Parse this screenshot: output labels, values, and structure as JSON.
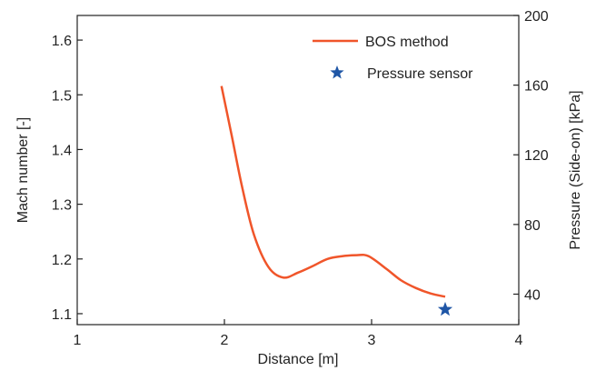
{
  "chart_data": {
    "type": "line",
    "xlabel": "Distance [m]",
    "ylabel": "Mach number [-]",
    "y2label": "Pressure (Side-on) [kPa]",
    "xlim": [
      1,
      4
    ],
    "ylim": [
      1.08,
      1.645
    ],
    "y2lim": [
      22.5,
      200
    ],
    "x_ticks": [
      1,
      2,
      3,
      4
    ],
    "y_ticks": [
      1.1,
      1.2,
      1.3,
      1.4,
      1.5,
      1.6
    ],
    "y2_ticks": [
      40,
      80,
      120,
      160,
      200
    ],
    "legend_position": "top-right",
    "grid": false,
    "series": [
      {
        "name": "BOS method",
        "kind": "line",
        "axis": "left",
        "color": "#f0552a",
        "x": [
          1.98,
          2.05,
          2.12,
          2.2,
          2.3,
          2.4,
          2.5,
          2.6,
          2.7,
          2.8,
          2.9,
          2.98,
          3.1,
          3.2,
          3.3,
          3.4,
          3.5
        ],
        "y": [
          1.516,
          1.425,
          1.332,
          1.245,
          1.185,
          1.166,
          1.175,
          1.187,
          1.2,
          1.205,
          1.207,
          1.205,
          1.182,
          1.161,
          1.147,
          1.137,
          1.131
        ]
      },
      {
        "name": "Pressure sensor",
        "kind": "scatter",
        "axis": "right",
        "marker": "star",
        "color": "#1f56a6",
        "x": [
          3.5
        ],
        "y": [
          31.2
        ]
      }
    ]
  }
}
